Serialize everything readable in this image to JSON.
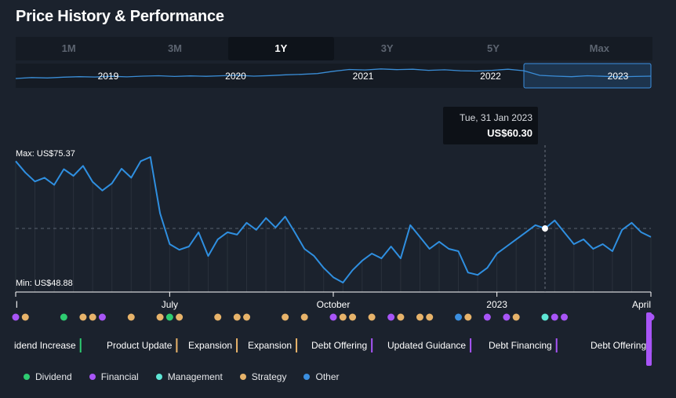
{
  "header": {
    "title": "Price History & Performance"
  },
  "range_tabs": [
    {
      "label": "1M",
      "active": false
    },
    {
      "label": "3M",
      "active": false
    },
    {
      "label": "1Y",
      "active": true
    },
    {
      "label": "3Y",
      "active": false
    },
    {
      "label": "5Y",
      "active": false
    },
    {
      "label": "Max",
      "active": false
    }
  ],
  "legend": [
    {
      "label": "Dividend",
      "color": "#2ecc71"
    },
    {
      "label": "Financial",
      "color": "#a855f7"
    },
    {
      "label": "Management",
      "color": "#5ee6d5"
    },
    {
      "label": "Strategy",
      "color": "#e7b36a"
    },
    {
      "label": "Other",
      "color": "#3b8fe0"
    }
  ],
  "chart_data": {
    "type": "line",
    "title": "Price History & Performance",
    "currency": "US$",
    "max_label": "Max: US$75.37",
    "min_label": "Min: US$48.88",
    "y_max": 75.37,
    "y_min": 48.88,
    "reference_line": 60.3,
    "tooltip": {
      "date": "Tue, 31 Jan 2023",
      "value_label": "US$60.30",
      "value": 60.3,
      "index": 55
    },
    "x_ticks": [
      {
        "label": "l",
        "index": 0
      },
      {
        "label": "July",
        "index": 16
      },
      {
        "label": "October",
        "index": 33
      },
      {
        "label": "2023",
        "index": 50
      },
      {
        "label": "April",
        "index": 66
      }
    ],
    "values": [
      74.5,
      72.1,
      70.2,
      71.0,
      69.5,
      72.8,
      71.4,
      73.5,
      70.1,
      68.3,
      69.8,
      72.9,
      71.0,
      74.5,
      75.37,
      63.5,
      57.0,
      55.8,
      56.5,
      59.5,
      54.5,
      58.0,
      59.5,
      59.0,
      61.5,
      60.0,
      62.5,
      60.5,
      62.8,
      59.5,
      56.0,
      54.5,
      52.0,
      50.0,
      48.88,
      51.5,
      53.5,
      55.0,
      54.0,
      56.5,
      54.0,
      61.0,
      58.5,
      56.0,
      57.5,
      56.0,
      55.5,
      51.0,
      50.5,
      52.0,
      55.0,
      56.5,
      58.0,
      59.5,
      61.0,
      60.3,
      62.0,
      59.5,
      57.0,
      58.0,
      56.0,
      57.0,
      55.5,
      60.0,
      61.5,
      59.5,
      58.5
    ],
    "navigator": {
      "year_labels": [
        "2019",
        "2020",
        "2021",
        "2022",
        "2023"
      ],
      "values": [
        0.35,
        0.4,
        0.38,
        0.42,
        0.45,
        0.43,
        0.47,
        0.44,
        0.48,
        0.5,
        0.46,
        0.49,
        0.47,
        0.5,
        0.52,
        0.48,
        0.51,
        0.55,
        0.58,
        0.62,
        0.75,
        0.85,
        0.82,
        0.88,
        0.84,
        0.86,
        0.8,
        0.83,
        0.78,
        0.76,
        0.8,
        0.86,
        0.78,
        0.52,
        0.48,
        0.45,
        0.5,
        0.47,
        0.44,
        0.46,
        0.48
      ]
    }
  },
  "events": {
    "dots": [
      {
        "index": 0,
        "type": "Financial"
      },
      {
        "index": 1,
        "type": "Strategy"
      },
      {
        "index": 5,
        "type": "Dividend"
      },
      {
        "index": 7,
        "type": "Strategy"
      },
      {
        "index": 8,
        "type": "Strategy"
      },
      {
        "index": 9,
        "type": "Financial"
      },
      {
        "index": 12,
        "type": "Strategy"
      },
      {
        "index": 15,
        "type": "Strategy"
      },
      {
        "index": 16,
        "type": "Dividend"
      },
      {
        "index": 17,
        "type": "Strategy"
      },
      {
        "index": 21,
        "type": "Strategy"
      },
      {
        "index": 23,
        "type": "Strategy"
      },
      {
        "index": 24,
        "type": "Strategy"
      },
      {
        "index": 28,
        "type": "Strategy"
      },
      {
        "index": 30,
        "type": "Strategy"
      },
      {
        "index": 33,
        "type": "Financial"
      },
      {
        "index": 34,
        "type": "Strategy"
      },
      {
        "index": 35,
        "type": "Strategy"
      },
      {
        "index": 37,
        "type": "Strategy"
      },
      {
        "index": 39,
        "type": "Financial"
      },
      {
        "index": 40,
        "type": "Strategy"
      },
      {
        "index": 42,
        "type": "Strategy"
      },
      {
        "index": 43,
        "type": "Strategy"
      },
      {
        "index": 46,
        "type": "Other"
      },
      {
        "index": 47,
        "type": "Strategy"
      },
      {
        "index": 49,
        "type": "Financial"
      },
      {
        "index": 51,
        "type": "Financial"
      },
      {
        "index": 52,
        "type": "Strategy"
      },
      {
        "index": 55,
        "type": "Management"
      },
      {
        "index": 56,
        "type": "Financial"
      },
      {
        "index": 57,
        "type": "Financial"
      },
      {
        "index": 66,
        "type": "Financial"
      }
    ],
    "labels": [
      {
        "text": "idend Increase",
        "type": "Dividend"
      },
      {
        "text": "Product Update",
        "type": "Strategy"
      },
      {
        "text": "Expansion",
        "type": "Strategy"
      },
      {
        "text": "Expansion",
        "type": "Strategy"
      },
      {
        "text": "Debt Offering",
        "type": "Financial"
      },
      {
        "text": "Updated Guidance",
        "type": "Financial"
      },
      {
        "text": "Debt Financing",
        "type": "Financial"
      },
      {
        "text": "Debt Offering",
        "type": "Financial"
      }
    ]
  }
}
